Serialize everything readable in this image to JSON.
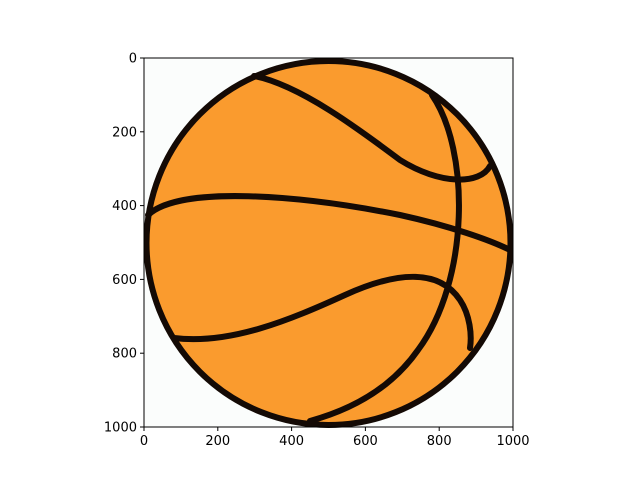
{
  "image": {
    "subject": "basketball",
    "colors": {
      "ball_fill": "#FA9B2E",
      "seam": "#140A05",
      "background": "#FBFDFC",
      "axis": "#000000"
    }
  },
  "axes": {
    "x_ticks": [
      {
        "value": 0,
        "label": "0"
      },
      {
        "value": 200,
        "label": "200"
      },
      {
        "value": 400,
        "label": "400"
      },
      {
        "value": 600,
        "label": "600"
      },
      {
        "value": 800,
        "label": "800"
      },
      {
        "value": 1000,
        "label": "1000"
      }
    ],
    "y_ticks": [
      {
        "value": 0,
        "label": "0"
      },
      {
        "value": 200,
        "label": "200"
      },
      {
        "value": 400,
        "label": "400"
      },
      {
        "value": 600,
        "label": "600"
      },
      {
        "value": 800,
        "label": "800"
      },
      {
        "value": 1000,
        "label": "1000"
      }
    ],
    "xlim": [
      0,
      1000
    ],
    "ylim": [
      1000,
      0
    ]
  }
}
